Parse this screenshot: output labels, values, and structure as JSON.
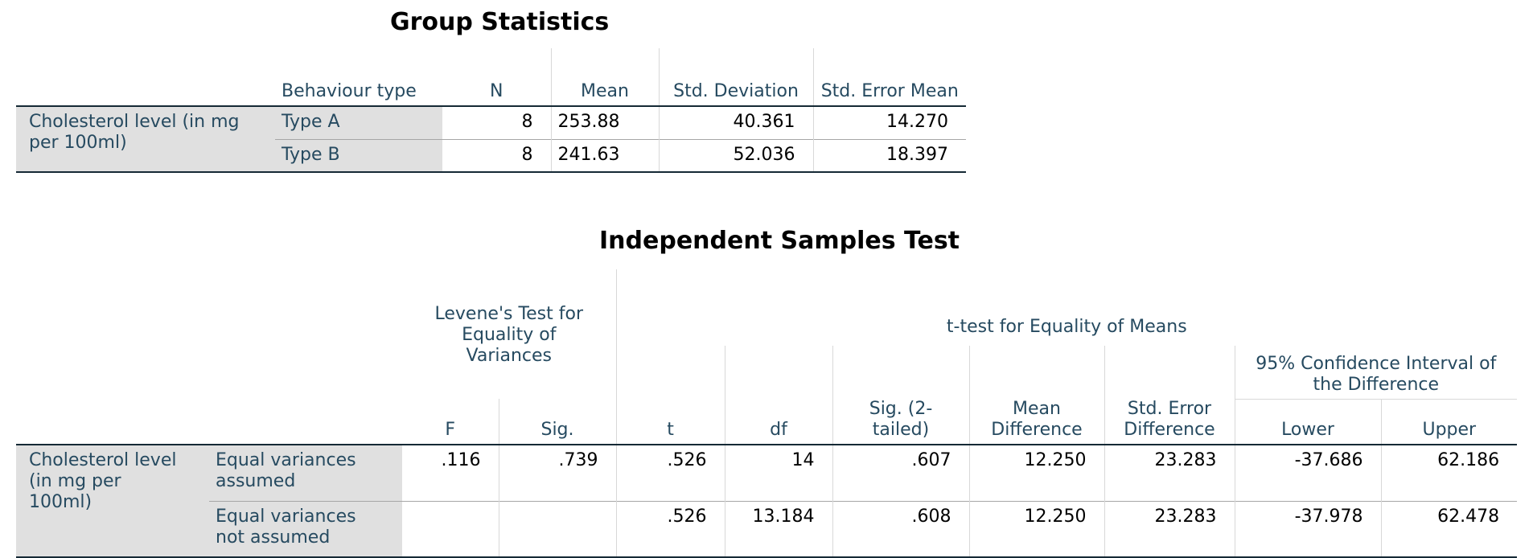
{
  "group_stats": {
    "title": "Group Statistics",
    "headers": {
      "behaviour_type": "Behaviour type",
      "n": "N",
      "mean": "Mean",
      "std_dev": "Std. Deviation",
      "std_err": "Std. Error Mean"
    },
    "row_label": "Cholesterol level (in mg per 100ml)",
    "rows": [
      {
        "group": "Type A",
        "n": "8",
        "mean": "253.88",
        "std_dev": "40.361",
        "std_err": "14.270"
      },
      {
        "group": "Type B",
        "n": "8",
        "mean": "241.63",
        "std_dev": "52.036",
        "std_err": "18.397"
      }
    ]
  },
  "ind_test": {
    "title": "Independent Samples Test",
    "levene_header": "Levene's Test for Equality of Variances",
    "ttest_header": "t-test for Equality of Means",
    "ci_header": "95% Confidence Interval of the Difference",
    "cols": {
      "f": "F",
      "sig": "Sig.",
      "t": "t",
      "df": "df",
      "sig2": "Sig. (2-tailed)",
      "mean_diff": "Mean Difference",
      "se_diff": "Std. Error Difference",
      "lower": "Lower",
      "upper": "Upper"
    },
    "row_label": "Cholesterol level (in mg per 100ml)",
    "rows": [
      {
        "label": "Equal variances assumed",
        "f": ".116",
        "sig": ".739",
        "t": ".526",
        "df": "14",
        "sig2": ".607",
        "mean_diff": "12.250",
        "se_diff": "23.283",
        "lower": "-37.686",
        "upper": "62.186"
      },
      {
        "label": "Equal variances not assumed",
        "f": "",
        "sig": "",
        "t": ".526",
        "df": "13.184",
        "sig2": ".608",
        "mean_diff": "12.250",
        "se_diff": "23.283",
        "lower": "-37.978",
        "upper": "62.478"
      }
    ]
  }
}
